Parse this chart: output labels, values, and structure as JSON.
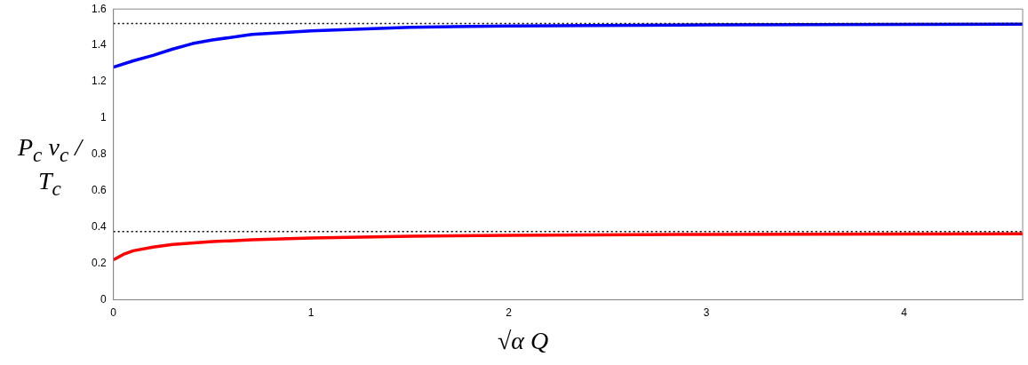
{
  "chart_data": {
    "type": "line",
    "xlabel": "√α Q",
    "ylabel": "P$_{c}$ v$_{c}$ / T$_{c}$",
    "xlim": [
      0,
      4.6
    ],
    "xticks": [
      0,
      1,
      2,
      3,
      4
    ],
    "ylim": [
      0,
      1.6
    ],
    "yticks": [
      0,
      0.2,
      0.4,
      0.6,
      0.8,
      1,
      1.2,
      1.4,
      1.6
    ],
    "grid": false,
    "legend": false,
    "marker": "none",
    "line_style": "solid",
    "series": [
      {
        "color": "#0000ff",
        "x": [
          0,
          0.1,
          0.2,
          0.3,
          0.4,
          0.5,
          0.7,
          1,
          1.5,
          2,
          3,
          4,
          4.6
        ],
        "values": [
          1.28,
          1.315,
          1.345,
          1.38,
          1.41,
          1.43,
          1.46,
          1.48,
          1.5,
          1.507,
          1.513,
          1.516,
          1.517
        ]
      },
      {
        "color": "#ff0000",
        "x": [
          0,
          0.05,
          0.1,
          0.2,
          0.3,
          0.5,
          0.7,
          1,
          1.5,
          2,
          3,
          4,
          4.6
        ],
        "values": [
          0.22,
          0.25,
          0.27,
          0.29,
          0.305,
          0.32,
          0.33,
          0.34,
          0.35,
          0.355,
          0.36,
          0.362,
          0.363
        ]
      }
    ],
    "ref_lines": [
      {
        "axis": "y",
        "value": 1.52,
        "color": "#000000",
        "line_style": "dotted"
      },
      {
        "axis": "y",
        "value": 0.375,
        "color": "#000000",
        "line_style": "dotted"
      }
    ]
  }
}
